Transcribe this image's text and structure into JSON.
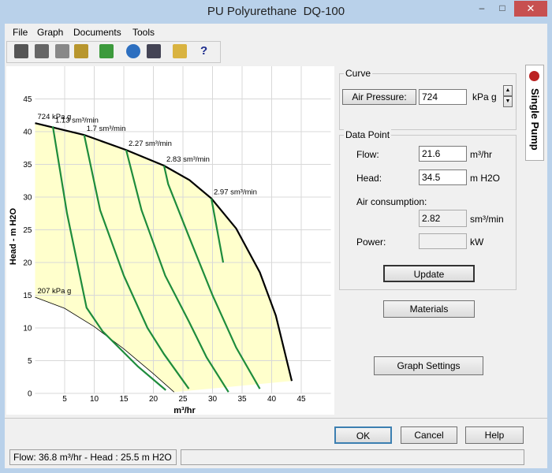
{
  "window": {
    "title": "PU Polyurethane  DQ-100"
  },
  "menu": [
    "File",
    "Graph",
    "Documents",
    "Tools"
  ],
  "toolbar": {
    "help": "?"
  },
  "chart_data": {
    "type": "line",
    "x_label": "m³/hr",
    "y_label": "Head - m H2O",
    "xlim": [
      0,
      50
    ],
    "ylim": [
      0,
      50
    ],
    "xticks": [
      5,
      10,
      15,
      20,
      25,
      30,
      35,
      40,
      45
    ],
    "yticks": [
      0,
      5,
      10,
      15,
      20,
      25,
      30,
      35,
      40,
      45
    ],
    "grid": true,
    "fill_color": "#ffffcc",
    "series": [
      {
        "name": "724 kPa g",
        "color": "#000000",
        "line_width": 2.2,
        "x": [
          0,
          8.3,
          15.4,
          21.8,
          26.1,
          29.8,
          34,
          38,
          40.7,
          43.4
        ],
        "values": [
          41.3,
          39.5,
          37.2,
          34.8,
          32.6,
          29.8,
          25.2,
          18.5,
          11.9,
          1.9
        ]
      },
      {
        "name": "207 kPa g",
        "color": "#000000",
        "line_width": 0.8,
        "x": [
          0,
          5,
          10,
          15,
          20,
          23.5
        ],
        "values": [
          14.7,
          13,
          10.2,
          6.8,
          3,
          0.2
        ]
      },
      {
        "name": "1.13 sm³/min",
        "color": "#1e8c3c",
        "line_width": 2.2,
        "x": [
          3,
          5.4,
          8.7,
          11.4,
          17.4,
          22.1
        ],
        "values": [
          40.8,
          27.5,
          13.1,
          9.5,
          4.1,
          0.5
        ]
      },
      {
        "name": "1.7 sm³/min",
        "color": "#1e8c3c",
        "line_width": 2.2,
        "x": [
          8.3,
          11,
          15,
          19,
          21.8,
          26
        ],
        "values": [
          39.5,
          28,
          18,
          10,
          6,
          0.7
        ]
      },
      {
        "name": "2.27 sm³/min",
        "color": "#1e8c3c",
        "line_width": 2.2,
        "x": [
          15.4,
          18,
          22,
          26,
          29,
          32.7
        ],
        "values": [
          37.2,
          28,
          18,
          11,
          5.5,
          0.2
        ]
      },
      {
        "name": "2.83 sm³/min",
        "color": "#1e8c3c",
        "line_width": 2.2,
        "x": [
          21.8,
          22.5,
          26,
          30,
          34,
          38
        ],
        "values": [
          34.8,
          32,
          24,
          15,
          7,
          0.7
        ]
      },
      {
        "name": "2.97 sm³/min",
        "color": "#1e8c3c",
        "line_width": 2.2,
        "x": [
          29.8,
          31.8
        ],
        "values": [
          29.8,
          20
        ]
      }
    ]
  },
  "tab": {
    "label": "Single Pump"
  },
  "curve_group": {
    "title": "Curve",
    "button": "Air Pressure:",
    "value": 724,
    "unit": "kPa g"
  },
  "data_point": {
    "title": "Data Point",
    "flow": {
      "label": "Flow:",
      "value": 21.6,
      "unit": "m³/hr"
    },
    "head": {
      "label": "Head:",
      "value": 34.5,
      "unit": "m H2O"
    },
    "air_consumption": {
      "label": "Air consumption:",
      "value": 2.82,
      "unit": "sm³/min"
    },
    "power": {
      "label": "Power:",
      "unit": "kW"
    }
  },
  "buttons": {
    "update": "Update",
    "materials": "Materials",
    "graph_settings": "Graph Settings",
    "ok": "OK",
    "cancel": "Cancel",
    "help": "Help"
  },
  "status": "Flow: 36.8 m³/hr - Head : 25.5 m H2O"
}
